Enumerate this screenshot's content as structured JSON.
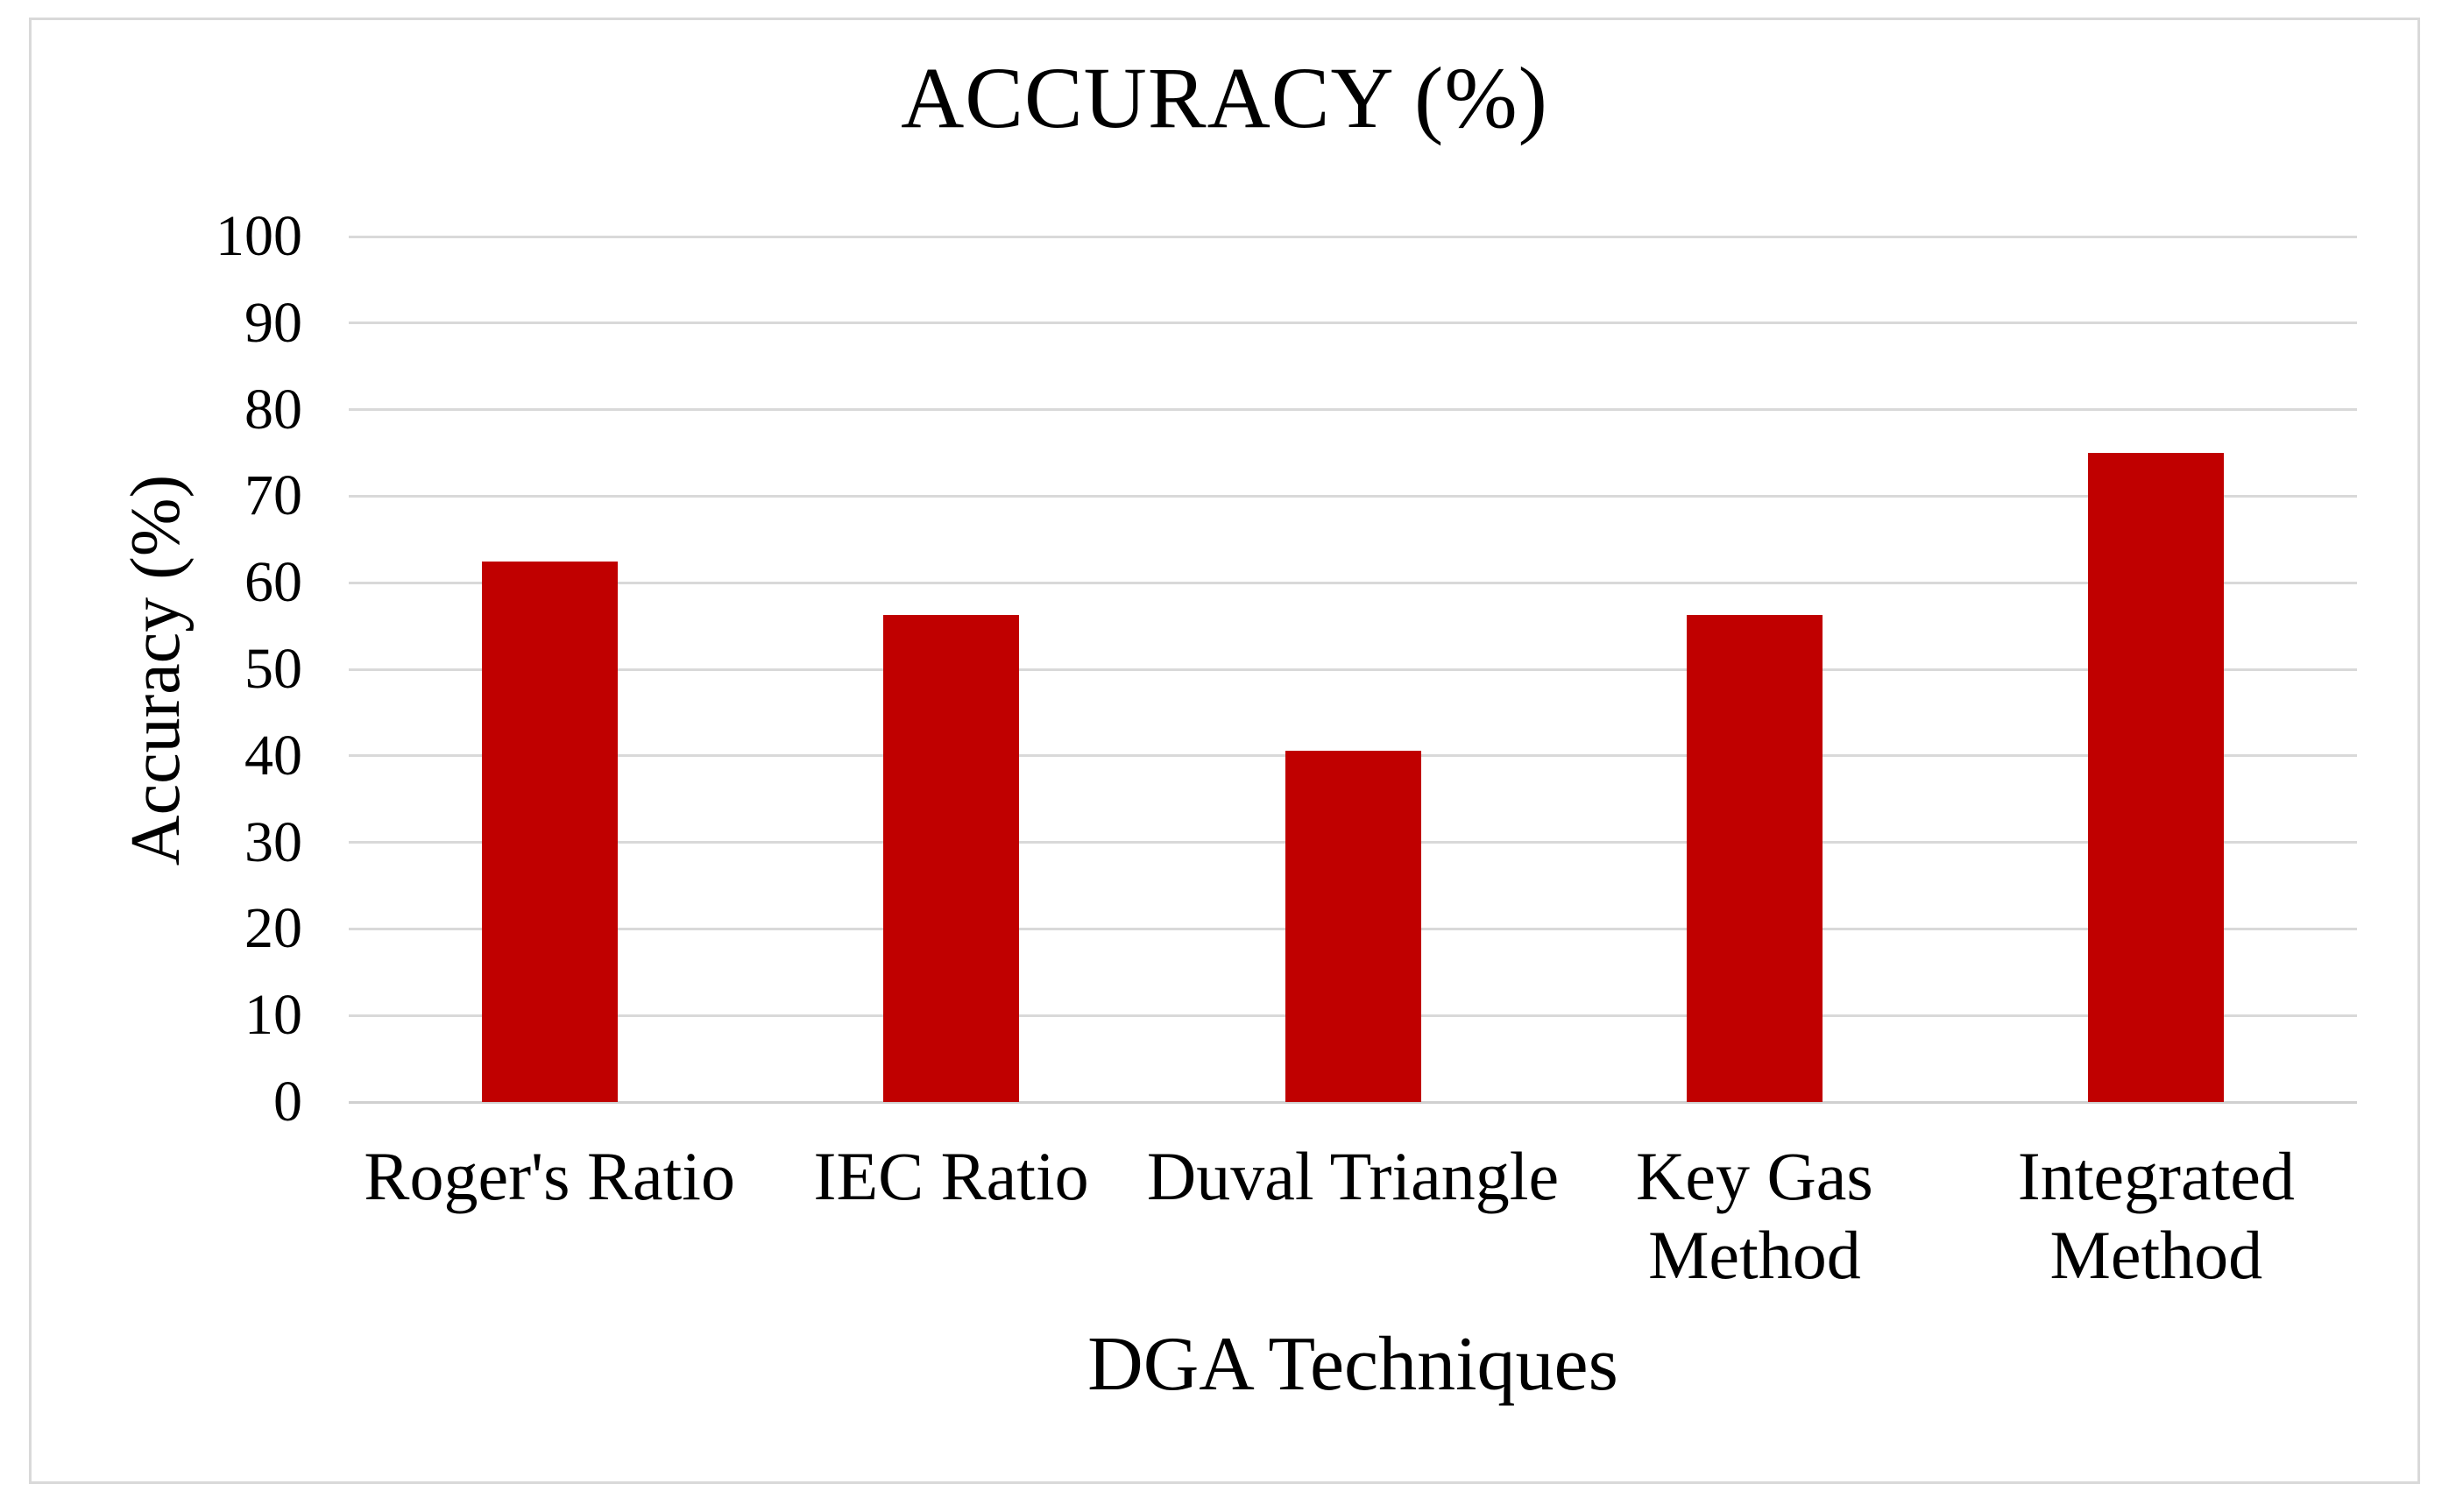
{
  "page": {
    "background_color": "#ffffff",
    "frame_border_color": "#d9d9d9"
  },
  "chart_data": {
    "type": "bar",
    "title": "ACCURACY (%)",
    "xlabel": "DGA Techniques",
    "ylabel": "Accuracy (%)",
    "categories": [
      "Roger's Ratio",
      "IEC Ratio",
      "Duval Triangle",
      "Key Gas Method",
      "Integrated Method"
    ],
    "values": [
      62.5,
      56.25,
      40.6,
      56.25,
      75
    ],
    "ylim": [
      0,
      100
    ],
    "yticks": [
      0,
      10,
      20,
      30,
      40,
      50,
      60,
      70,
      80,
      90,
      100
    ],
    "grid": true,
    "legend": "none",
    "bar_color": "#c00000",
    "gridline_color": "#d9d9d9",
    "axis_line_color": "#d0d0d0",
    "text_color": "#000000"
  }
}
